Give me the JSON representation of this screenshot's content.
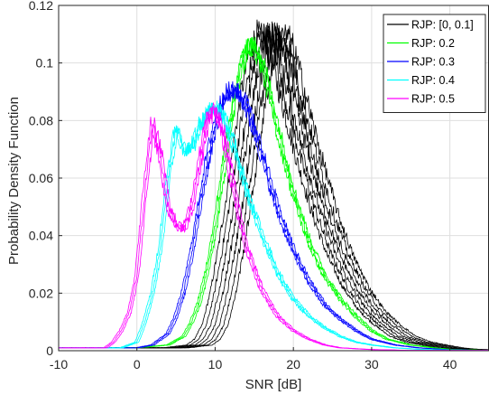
{
  "chart_data": {
    "type": "line",
    "title": "",
    "xlabel": "SNR [dB]",
    "ylabel": "Probability Density Function",
    "xlim": [
      -10,
      45
    ],
    "ylim": [
      0,
      0.12
    ],
    "xticks": [
      -10,
      0,
      10,
      20,
      30,
      40
    ],
    "xtick_labels": [
      "-10",
      "0",
      "10",
      "20",
      "30",
      "40"
    ],
    "yticks": [
      0,
      0.02,
      0.04,
      0.06,
      0.08,
      0.1,
      0.12
    ],
    "ytick_labels": [
      "0",
      "0.02",
      "0.04",
      "0.06",
      "0.08",
      "0.1",
      "0.12"
    ],
    "grid": true,
    "legend_position": "top-right",
    "series": [
      {
        "name": "RJP: [0, 0.1]",
        "color": "#000000",
        "x": [
          -10,
          0,
          5,
          8,
          9,
          10,
          11,
          12,
          13,
          14,
          15,
          16,
          17,
          18,
          19,
          20,
          22,
          24,
          26,
          28,
          30,
          32,
          34,
          36,
          38,
          40,
          42,
          45
        ],
        "y": [
          0.001,
          0.001,
          0.001,
          0.002,
          0.004,
          0.009,
          0.02,
          0.035,
          0.052,
          0.072,
          0.09,
          0.104,
          0.11,
          0.108,
          0.099,
          0.088,
          0.067,
          0.048,
          0.033,
          0.022,
          0.014,
          0.009,
          0.005,
          0.003,
          0.002,
          0.001,
          0.0005,
          0.0002
        ]
      },
      {
        "name": "RJP: 0.2",
        "color": "#00ff00",
        "x": [
          -10,
          0,
          4,
          6,
          7,
          8,
          9,
          10,
          11,
          12,
          13,
          14,
          15,
          16,
          17,
          18,
          20,
          22,
          24,
          26,
          28,
          30,
          32,
          35,
          38,
          40,
          45
        ],
        "y": [
          0.001,
          0.001,
          0.002,
          0.005,
          0.01,
          0.017,
          0.028,
          0.043,
          0.062,
          0.08,
          0.095,
          0.105,
          0.106,
          0.1,
          0.089,
          0.077,
          0.055,
          0.038,
          0.026,
          0.018,
          0.012,
          0.007,
          0.004,
          0.002,
          0.001,
          0.0005,
          0.0001
        ]
      },
      {
        "name": "RJP: 0.3",
        "color": "#0000ff",
        "x": [
          -10,
          0,
          2,
          4,
          5,
          6,
          7,
          8,
          9,
          10,
          11,
          12,
          13,
          14,
          15,
          16,
          18,
          20,
          22,
          24,
          26,
          28,
          30,
          33,
          36,
          40,
          45
        ],
        "y": [
          0.001,
          0.001,
          0.002,
          0.006,
          0.012,
          0.021,
          0.034,
          0.05,
          0.066,
          0.079,
          0.087,
          0.091,
          0.09,
          0.085,
          0.077,
          0.068,
          0.049,
          0.035,
          0.024,
          0.016,
          0.011,
          0.007,
          0.004,
          0.002,
          0.001,
          0.0003,
          0.0001
        ]
      },
      {
        "name": "RJP: 0.4",
        "color": "#00ffff",
        "x": [
          -10,
          -2,
          0,
          1,
          2,
          3,
          4,
          5,
          6,
          7,
          8,
          9,
          10,
          11,
          12,
          13,
          14,
          16,
          18,
          20,
          22,
          24,
          26,
          28,
          30,
          33,
          36,
          40,
          45
        ],
        "y": [
          0.001,
          0.001,
          0.003,
          0.01,
          0.02,
          0.036,
          0.06,
          0.077,
          0.07,
          0.07,
          0.078,
          0.083,
          0.085,
          0.082,
          0.075,
          0.066,
          0.056,
          0.04,
          0.027,
          0.018,
          0.012,
          0.008,
          0.005,
          0.003,
          0.002,
          0.001,
          0.0005,
          0.0002,
          0.0001
        ]
      },
      {
        "name": "RJP: 0.5",
        "color": "#ff00ff",
        "x": [
          -10,
          -4,
          -3,
          -2,
          -1,
          0,
          1,
          2,
          3,
          4,
          5,
          6,
          7,
          8,
          9,
          10,
          11,
          12,
          13,
          14,
          16,
          18,
          20,
          22,
          24,
          26,
          30,
          35,
          45
        ],
        "y": [
          0.001,
          0.001,
          0.003,
          0.007,
          0.013,
          0.026,
          0.055,
          0.079,
          0.068,
          0.05,
          0.044,
          0.042,
          0.05,
          0.065,
          0.08,
          0.084,
          0.076,
          0.062,
          0.048,
          0.036,
          0.021,
          0.012,
          0.007,
          0.004,
          0.002,
          0.001,
          0.0004,
          0.0001,
          0.0001
        ]
      }
    ]
  }
}
